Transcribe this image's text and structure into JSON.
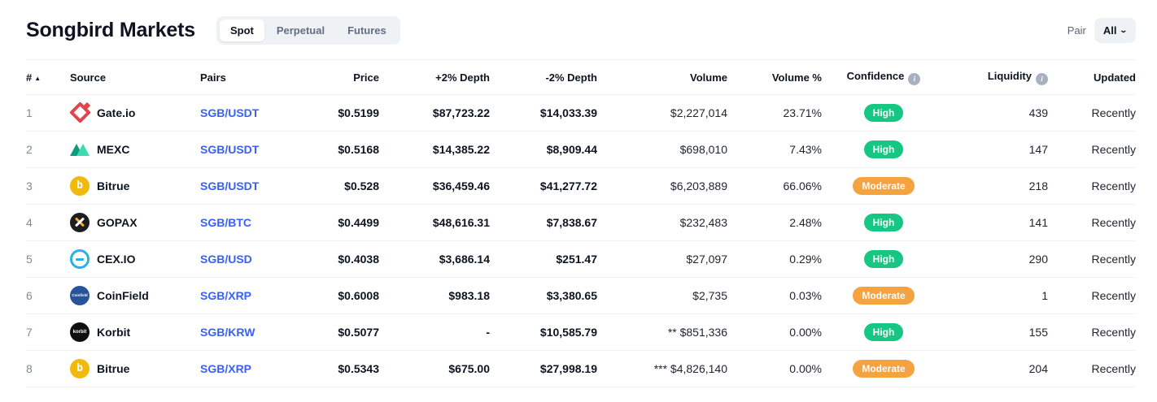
{
  "header": {
    "title": "Songbird Markets",
    "pair_filter": {
      "label": "Pair",
      "value": "All"
    }
  },
  "tabs": [
    {
      "label": "Spot",
      "active": true
    },
    {
      "label": "Perpetual",
      "active": false
    },
    {
      "label": "Futures",
      "active": false
    }
  ],
  "table": {
    "headers": {
      "rank": "#",
      "source": "Source",
      "pairs": "Pairs",
      "price": "Price",
      "depth_plus": "+2% Depth",
      "depth_minus": "-2% Depth",
      "volume": "Volume",
      "volume_pct": "Volume %",
      "confidence": "Confidence",
      "liquidity": "Liquidity",
      "updated": "Updated"
    },
    "rows": [
      {
        "rank": "1",
        "source": "Gate.io",
        "icon": "gateio",
        "pair": "SGB/USDT",
        "price": "$0.5199",
        "depth_plus": "$87,723.22",
        "depth_minus": "$14,033.39",
        "volume": "$2,227,014",
        "volume_pct": "23.71%",
        "confidence": "High",
        "confidence_level": "high",
        "liquidity": "439",
        "updated": "Recently"
      },
      {
        "rank": "2",
        "source": "MEXC",
        "icon": "mexc",
        "pair": "SGB/USDT",
        "price": "$0.5168",
        "depth_plus": "$14,385.22",
        "depth_minus": "$8,909.44",
        "volume": "$698,010",
        "volume_pct": "7.43%",
        "confidence": "High",
        "confidence_level": "high",
        "liquidity": "147",
        "updated": "Recently"
      },
      {
        "rank": "3",
        "source": "Bitrue",
        "icon": "bitrue",
        "pair": "SGB/USDT",
        "price": "$0.528",
        "depth_plus": "$36,459.46",
        "depth_minus": "$41,277.72",
        "volume": "$6,203,889",
        "volume_pct": "66.06%",
        "confidence": "Moderate",
        "confidence_level": "moderate",
        "liquidity": "218",
        "updated": "Recently"
      },
      {
        "rank": "4",
        "source": "GOPAX",
        "icon": "gopax",
        "pair": "SGB/BTC",
        "price": "$0.4499",
        "depth_plus": "$48,616.31",
        "depth_minus": "$7,838.67",
        "volume": "$232,483",
        "volume_pct": "2.48%",
        "confidence": "High",
        "confidence_level": "high",
        "liquidity": "141",
        "updated": "Recently"
      },
      {
        "rank": "5",
        "source": "CEX.IO",
        "icon": "cexio",
        "pair": "SGB/USD",
        "price": "$0.4038",
        "depth_plus": "$3,686.14",
        "depth_minus": "$251.47",
        "volume": "$27,097",
        "volume_pct": "0.29%",
        "confidence": "High",
        "confidence_level": "high",
        "liquidity": "290",
        "updated": "Recently"
      },
      {
        "rank": "6",
        "source": "CoinField",
        "icon": "coinfield",
        "pair": "SGB/XRP",
        "price": "$0.6008",
        "depth_plus": "$983.18",
        "depth_minus": "$3,380.65",
        "volume": "$2,735",
        "volume_pct": "0.03%",
        "confidence": "Moderate",
        "confidence_level": "moderate",
        "liquidity": "1",
        "updated": "Recently"
      },
      {
        "rank": "7",
        "source": "Korbit",
        "icon": "korbit",
        "pair": "SGB/KRW",
        "price": "$0.5077",
        "depth_plus": "-",
        "depth_minus": "$10,585.79",
        "volume": "** $851,336",
        "volume_pct": "0.00%",
        "confidence": "High",
        "confidence_level": "high",
        "liquidity": "155",
        "updated": "Recently"
      },
      {
        "rank": "8",
        "source": "Bitrue",
        "icon": "bitrue",
        "pair": "SGB/XRP",
        "price": "$0.5343",
        "depth_plus": "$675.00",
        "depth_minus": "$27,998.19",
        "volume": "*** $4,826,140",
        "volume_pct": "0.00%",
        "confidence": "Moderate",
        "confidence_level": "moderate",
        "liquidity": "204",
        "updated": "Recently"
      }
    ]
  },
  "colors": {
    "confidence_high": "#16c784",
    "confidence_moderate": "#f5a341",
    "pair_link": "#3861fb",
    "text_primary": "#0d1421",
    "text_secondary": "#808a9d",
    "divider": "#eff2f5"
  }
}
